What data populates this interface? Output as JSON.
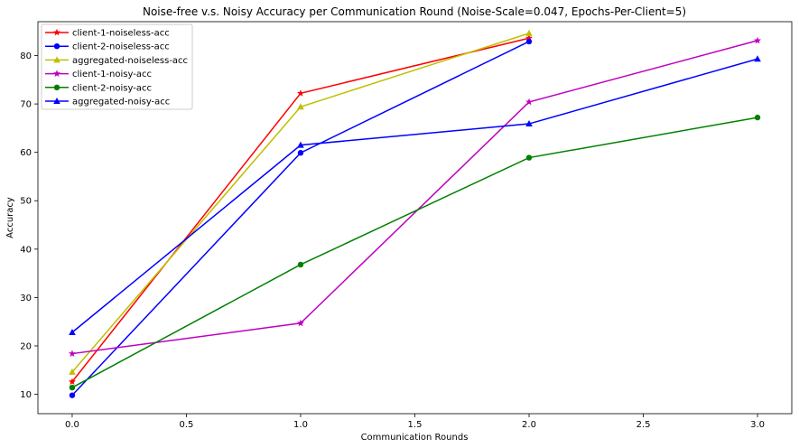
{
  "chart_data": {
    "type": "line",
    "title": "Noise-free v.s. Noisy Accuracy per Communication Round (Noise-Scale=0.047, Epochs-Per-Client=5)",
    "xlabel": "Communication Rounds",
    "ylabel": "Accuracy",
    "xlim": [
      -0.15,
      3.15
    ],
    "ylim": [
      6,
      87
    ],
    "xticks": [
      0.0,
      0.5,
      1.0,
      1.5,
      2.0,
      2.5,
      3.0
    ],
    "xtick_labels": [
      "0.0",
      "0.5",
      "1.0",
      "1.5",
      "2.0",
      "2.5",
      "3.0"
    ],
    "yticks": [
      10,
      20,
      30,
      40,
      50,
      60,
      70,
      80
    ],
    "ytick_labels": [
      "10",
      "20",
      "30",
      "40",
      "50",
      "60",
      "70",
      "80"
    ],
    "legend_position": "top-left",
    "grid": false,
    "series": [
      {
        "name": "client-1-noiseless-acc",
        "color": "#ff0000",
        "marker": "star",
        "x": [
          0,
          1,
          2
        ],
        "y": [
          12.6,
          72.2,
          83.6
        ]
      },
      {
        "name": "client-2-noiseless-acc",
        "color": "#0000ff",
        "marker": "circle",
        "x": [
          0,
          1,
          2
        ],
        "y": [
          9.8,
          59.9,
          82.9
        ]
      },
      {
        "name": "aggregated-noiseless-acc",
        "color": "#bfbf00",
        "marker": "triangle",
        "x": [
          0,
          1,
          2
        ],
        "y": [
          14.6,
          69.4,
          84.6
        ]
      },
      {
        "name": "client-1-noisy-acc",
        "color": "#bf00bf",
        "marker": "star",
        "x": [
          0,
          1,
          2,
          3
        ],
        "y": [
          18.4,
          24.7,
          70.4,
          83.1
        ]
      },
      {
        "name": "client-2-noisy-acc",
        "color": "#008000",
        "marker": "circle",
        "x": [
          0,
          1,
          2,
          3
        ],
        "y": [
          11.4,
          36.8,
          58.9,
          67.2
        ]
      },
      {
        "name": "aggregated-noisy-acc",
        "color": "#0000ff",
        "marker": "triangle",
        "x": [
          0,
          1,
          2,
          3
        ],
        "y": [
          22.8,
          61.5,
          65.9,
          79.3
        ]
      }
    ]
  }
}
